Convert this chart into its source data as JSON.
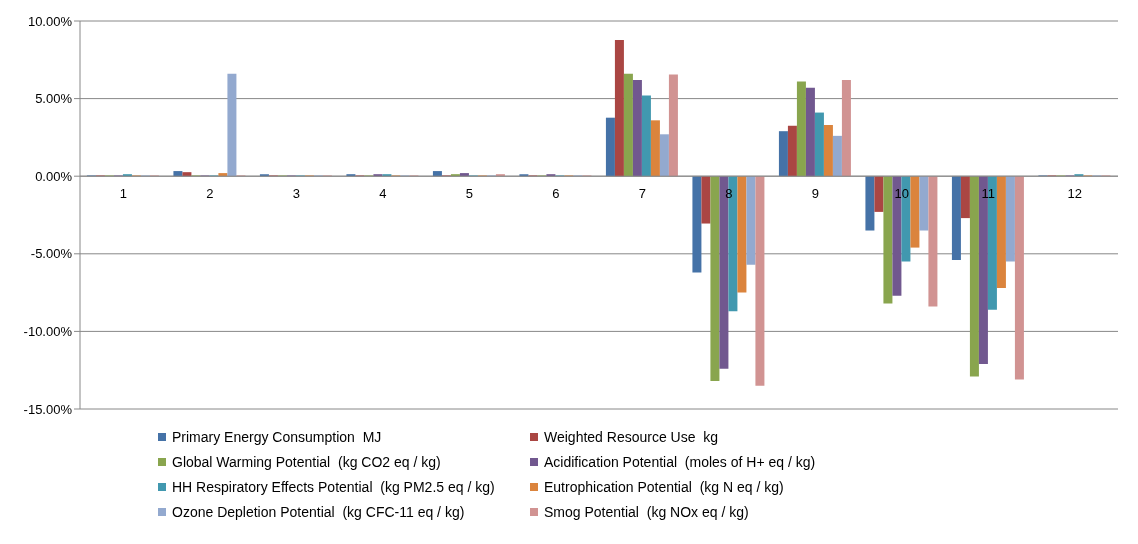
{
  "chart_data": {
    "type": "bar",
    "categories": [
      "1",
      "2",
      "3",
      "4",
      "5",
      "6",
      "7",
      "8",
      "9",
      "10",
      "11",
      "12"
    ],
    "series": [
      {
        "name": "Primary Energy Consumption  MJ",
        "color": "#4572a7",
        "values": [
          0.05,
          0.33,
          0.13,
          0.13,
          0.33,
          0.13,
          3.77,
          -6.2,
          2.9,
          -3.5,
          -5.4,
          0.05
        ]
      },
      {
        "name": "Weighted Resource Use  kg",
        "color": "#aa4643",
        "values": [
          0.05,
          0.26,
          0.05,
          0.05,
          0.05,
          0.05,
          8.77,
          -3.05,
          3.25,
          -2.3,
          -2.7,
          0.05
        ]
      },
      {
        "name": "Global Warming Potential  (kg CO2 eq / kg)",
        "color": "#89a54e",
        "values": [
          0.05,
          0.05,
          0.05,
          0.05,
          0.13,
          0.05,
          6.6,
          -13.2,
          6.1,
          -8.2,
          -12.9,
          0.05
        ]
      },
      {
        "name": "Acidification Potential  (moles of H+ eq / kg)",
        "color": "#71588f",
        "values": [
          0.05,
          0.05,
          0.05,
          0.13,
          0.2,
          0.13,
          6.2,
          -12.4,
          5.7,
          -7.7,
          -12.1,
          0.05
        ]
      },
      {
        "name": "HH Respiratory Effects Potential  (kg PM2.5 eq / kg)",
        "color": "#4198af",
        "values": [
          0.13,
          0.05,
          0.05,
          0.13,
          0.05,
          0.05,
          5.2,
          -8.7,
          4.1,
          -5.5,
          -8.6,
          0.13
        ]
      },
      {
        "name": "Eutrophication Potential  (kg N eq / kg)",
        "color": "#db843d",
        "values": [
          0.05,
          0.2,
          0.05,
          0.05,
          0.05,
          0.05,
          3.6,
          -7.5,
          3.3,
          -4.6,
          -7.2,
          0.05
        ]
      },
      {
        "name": "Ozone Depletion Potential  (kg CFC-11 eq / kg)",
        "color": "#93a9cf",
        "values": [
          0.05,
          6.6,
          0.05,
          0.05,
          0.05,
          0.05,
          2.7,
          -5.7,
          2.6,
          -3.5,
          -5.5,
          0.05
        ]
      },
      {
        "name": "Smog Potential  (kg NOx eq / kg)",
        "color": "#d19392",
        "values": [
          0.05,
          0.05,
          0.05,
          0.05,
          0.13,
          0.05,
          6.55,
          -13.5,
          6.2,
          -8.4,
          -13.1,
          0.05
        ]
      }
    ],
    "ylim": [
      -15,
      10
    ],
    "yticks": [
      {
        "value": -15,
        "label": "-15.00%"
      },
      {
        "value": -10,
        "label": "-10.00%"
      },
      {
        "value": -5,
        "label": "-5.00%"
      },
      {
        "value": 0,
        "label": "0.00%"
      },
      {
        "value": 5,
        "label": "5.00%"
      },
      {
        "value": 10,
        "label": "10.00%"
      }
    ],
    "grid": "y",
    "legend": "bottom"
  }
}
